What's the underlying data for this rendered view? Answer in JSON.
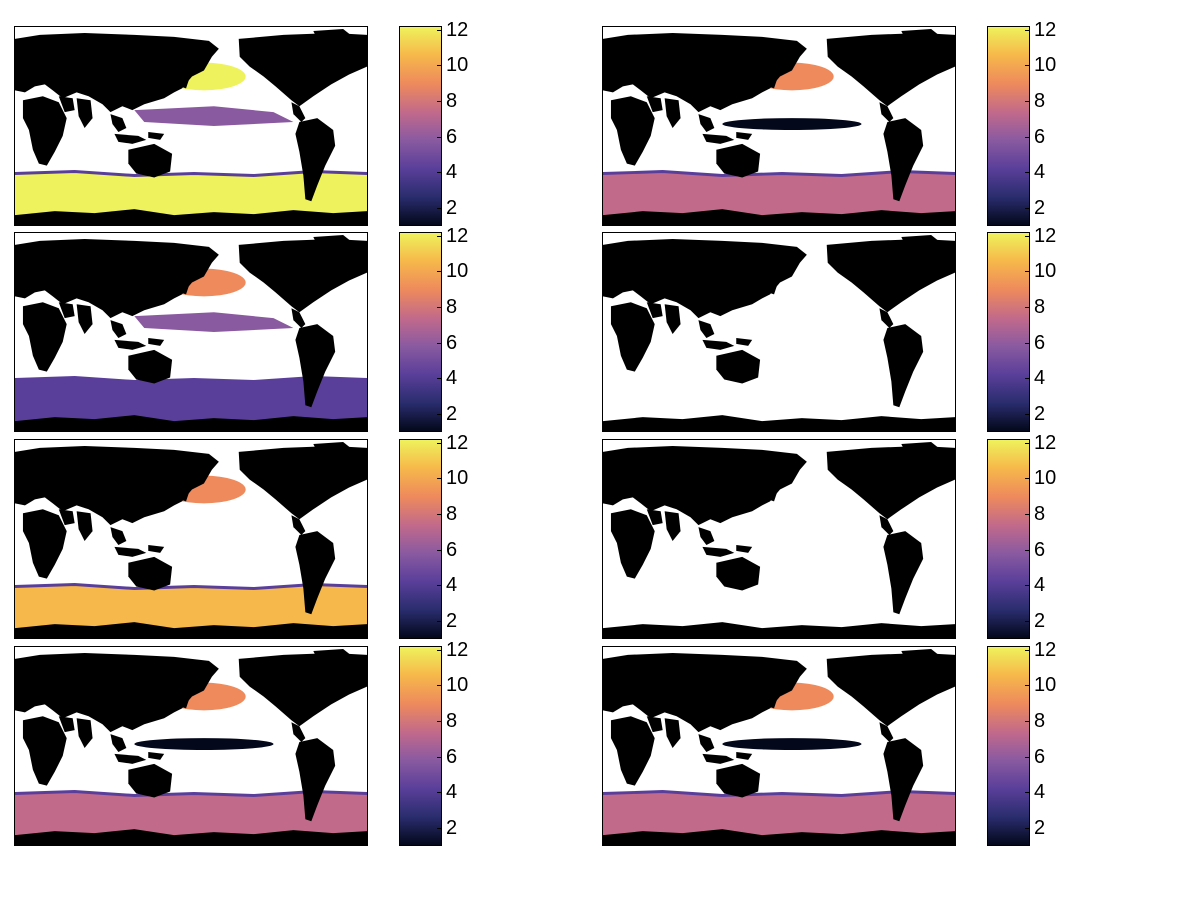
{
  "chart_data": {
    "type": "heatmap",
    "layout": "4 rows x 2 columns of global ocean map panels, each with its own vertical colorbar",
    "colormap": [
      "#03081a",
      "#2a2d6e",
      "#5a3f9a",
      "#8a5aa0",
      "#c26a8a",
      "#ee8a5c",
      "#f6b84a",
      "#eef25c"
    ],
    "land_color": "#000000",
    "missing_color": "#ffffff",
    "colorbar": {
      "min": 1,
      "max": 12.2,
      "ticks": [
        "2",
        "4",
        "6",
        "8",
        "10",
        "12"
      ]
    },
    "panels": [
      {
        "id": "r1c1",
        "southern_band": "high"
      },
      {
        "id": "r1c2",
        "southern_band": "mid"
      },
      {
        "id": "r2c1",
        "southern_band": "low"
      },
      {
        "id": "r2c2",
        "southern_band": "none"
      },
      {
        "id": "r3c1",
        "southern_band": "mid-high"
      },
      {
        "id": "r3c2",
        "southern_band": "none"
      },
      {
        "id": "r4c1",
        "southern_band": "mid"
      },
      {
        "id": "r4c2",
        "southern_band": "mid"
      }
    ]
  }
}
